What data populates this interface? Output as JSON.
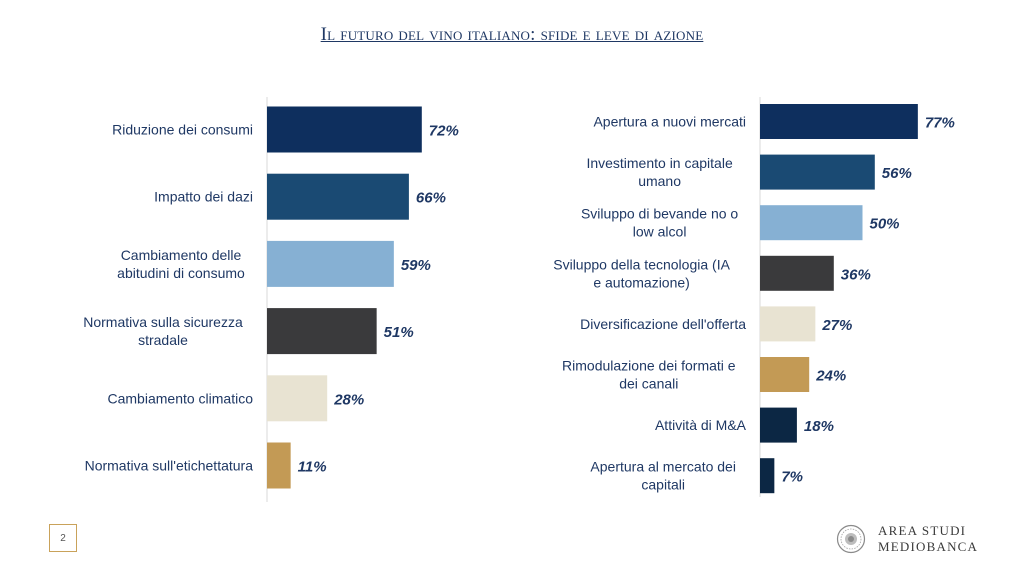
{
  "title": "Il futuro del vino italiano: sfide e leve di azione",
  "page_number": "2",
  "logo": {
    "line1": "AREA STUDI",
    "line2": "MEDIOBANCA"
  },
  "colors": {
    "dark_navy": "#0e2f5e",
    "navy_teal": "#1a4a73",
    "light_blue": "#86b0d3",
    "charcoal": "#3a3a3c",
    "cream": "#e8e3d2",
    "gold": "#c39a55",
    "midnight": "#0c2744",
    "label_blue": "#1f3864"
  },
  "chart_data": [
    {
      "type": "bar",
      "orientation": "horizontal",
      "categories": [
        "Riduzione dei consumi",
        "Impatto dei dazi",
        "Cambiamento delle abitudini di consumo",
        "Normativa sulla sicurezza stradale",
        "Cambiamento climatico",
        "Normativa sull'etichettatura"
      ],
      "label_lines": [
        [
          "Riduzione dei consumi"
        ],
        [
          "Impatto dei dazi"
        ],
        [
          "Cambiamento delle",
          "abitudini di consumo"
        ],
        [
          "Normativa sulla sicurezza",
          "stradale"
        ],
        [
          "Cambiamento climatico"
        ],
        [
          "Normativa sull'etichettatura"
        ]
      ],
      "values": [
        72,
        66,
        59,
        51,
        28,
        11
      ],
      "data_labels": [
        "72%",
        "66%",
        "59%",
        "51%",
        "28%",
        "11%"
      ],
      "bar_colors": [
        "#0e2f5e",
        "#1a4a73",
        "#86b0d3",
        "#3a3a3c",
        "#e8e3d2",
        "#c39a55"
      ],
      "unit": "%"
    },
    {
      "type": "bar",
      "orientation": "horizontal",
      "categories": [
        "Apertura a nuovi mercati",
        "Investimento in capitale umano",
        "Sviluppo di bevande no o low alcol",
        "Sviluppo della tecnologia (IA e automazione)",
        "Diversificazione dell'offerta",
        "Rimodulazione dei formati e dei canali",
        "Attività di M&A",
        "Apertura al mercato dei capitali"
      ],
      "label_lines": [
        [
          "Apertura a nuovi mercati"
        ],
        [
          "Investimento in capitale",
          "umano"
        ],
        [
          "Sviluppo di bevande no o",
          "low alcol"
        ],
        [
          "Sviluppo della tecnologia (IA",
          "e automazione)"
        ],
        [
          "Diversificazione dell'offerta"
        ],
        [
          "Rimodulazione dei formati e",
          "dei canali"
        ],
        [
          "Attività di M&A"
        ],
        [
          "Apertura al mercato dei",
          "capitali"
        ]
      ],
      "values": [
        77,
        56,
        50,
        36,
        27,
        24,
        18,
        7
      ],
      "data_labels": [
        "77%",
        "56%",
        "50%",
        "36%",
        "27%",
        "24%",
        "18%",
        "7%"
      ],
      "bar_colors": [
        "#0e2f5e",
        "#1a4a73",
        "#86b0d3",
        "#3a3a3c",
        "#e8e3d2",
        "#c39a55",
        "#0c2744",
        "#0c2744"
      ],
      "unit": "%"
    }
  ]
}
